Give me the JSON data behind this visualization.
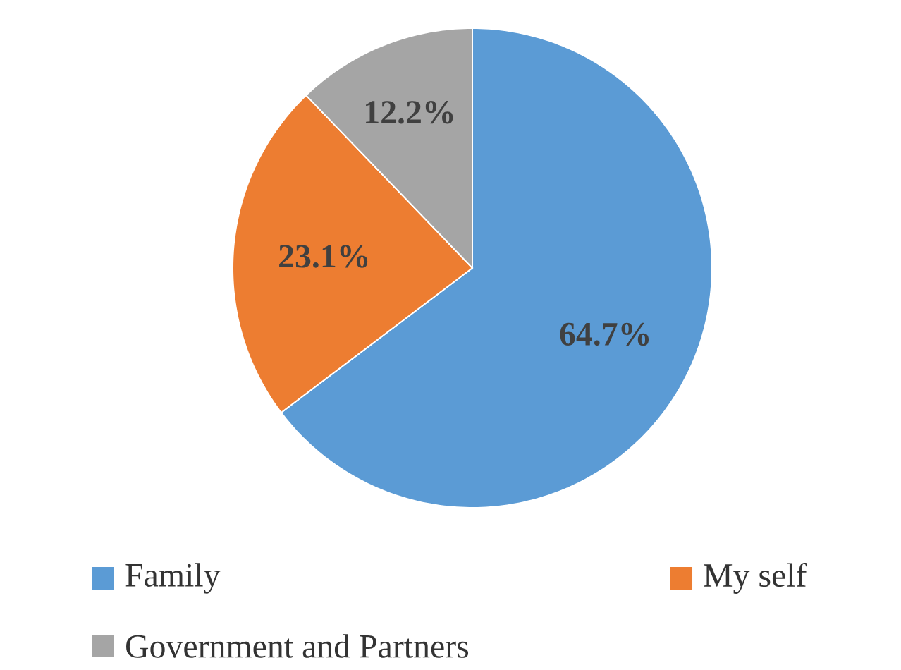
{
  "chart_data": {
    "type": "pie",
    "categories": [
      "Family",
      "My self",
      "Government and Partners"
    ],
    "values": [
      64.7,
      23.1,
      12.2
    ],
    "colors": [
      "#5b9bd5",
      "#ed7d31",
      "#a5a5a5"
    ],
    "value_labels": [
      "64.7%",
      "23.1%",
      "12.2%"
    ],
    "legend": "bottom"
  }
}
